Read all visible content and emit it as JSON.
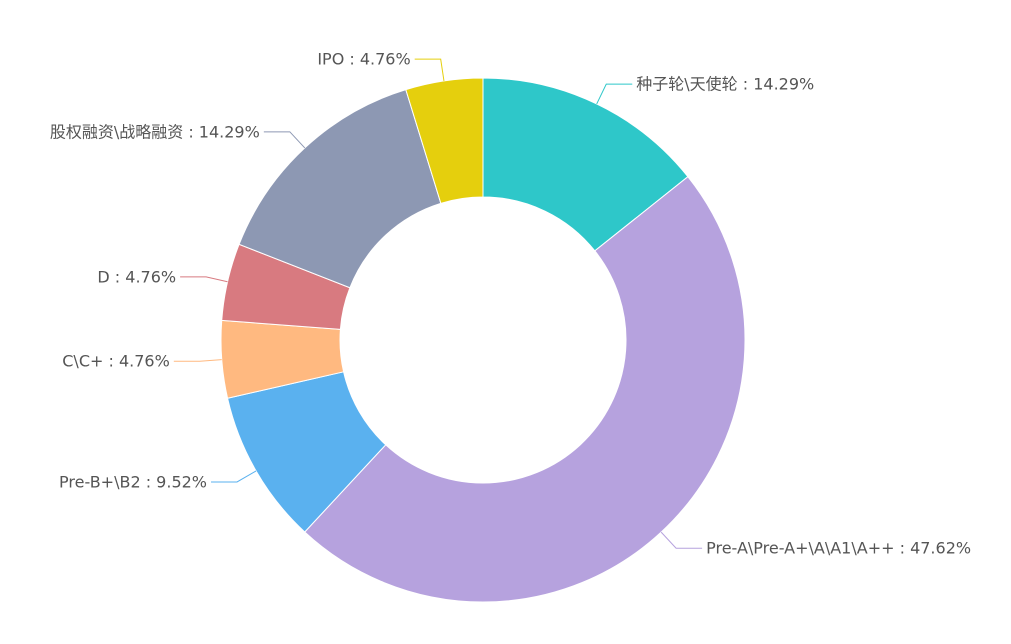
{
  "chart_data": {
    "type": "pie",
    "variant": "donut",
    "title": "",
    "slices": [
      {
        "name": "种子轮\\天使轮",
        "value": 14.29,
        "color": "#2ec7c9",
        "label": "种子轮\\天使轮 : 14.29%"
      },
      {
        "name": "Pre-A\\Pre-A+\\A\\A1\\A++",
        "value": 47.62,
        "color": "#b6a2de",
        "label": "Pre-A\\Pre-A+\\A\\A1\\A++ : 47.62%"
      },
      {
        "name": "Pre-B+\\B2",
        "value": 9.52,
        "color": "#5ab1ef",
        "label": "Pre-B+\\B2 : 9.52%"
      },
      {
        "name": "C\\C+",
        "value": 4.76,
        "color": "#ffb980",
        "label": "C\\C+ : 4.76%"
      },
      {
        "name": "D",
        "value": 4.76,
        "color": "#d87a80",
        "label": "D : 4.76%"
      },
      {
        "name": "股权融资\\战略融资",
        "value": 14.29,
        "color": "#8d98b3",
        "label": "股权融资\\战略融资 : 14.29%"
      },
      {
        "name": "IPO",
        "value": 4.76,
        "color": "#e5cf0d",
        "label": "IPO : 4.76%"
      }
    ]
  }
}
